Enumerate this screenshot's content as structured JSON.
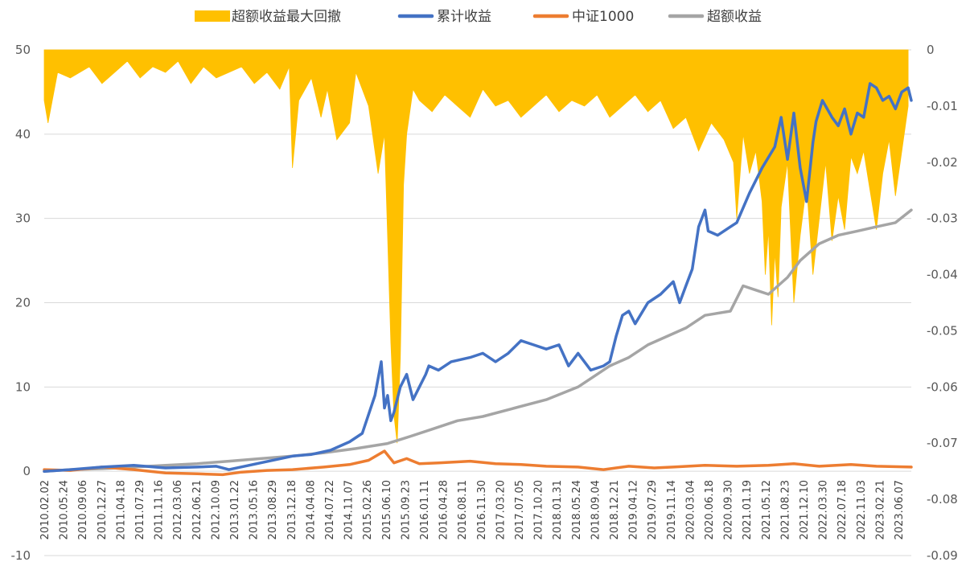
{
  "chart_data": {
    "type": "line",
    "legend_position": "top",
    "grid": "horizontal",
    "left_axis": {
      "ylim": [
        -10,
        50
      ],
      "ticks": [
        "-10",
        "0",
        "10",
        "20",
        "30",
        "40",
        "50"
      ],
      "tick_values": [
        -10,
        0,
        10,
        20,
        30,
        40,
        50
      ]
    },
    "right_axis": {
      "ylim": [
        -0.09,
        0
      ],
      "ticks": [
        "0",
        "-0.01",
        "-0.02",
        "-0.03",
        "-0.04",
        "-0.05",
        "-0.06",
        "-0.07",
        "-0.08",
        "-0.09"
      ],
      "tick_values": [
        0,
        -0.01,
        -0.02,
        -0.03,
        -0.04,
        -0.05,
        -0.06,
        -0.07,
        -0.08,
        -0.09
      ]
    },
    "x_tick_labels": [
      "2010.02.02",
      "2010.05.24",
      "2010.09.06",
      "2010.12.27",
      "2011.04.18",
      "2011.07.29",
      "2011.11.16",
      "2012.03.06",
      "2012.06.21",
      "2012.10.09",
      "2013.01.22",
      "2013.05.16",
      "2013.08.29",
      "2013.12.18",
      "2014.04.08",
      "2014.07.22",
      "2014.11.07",
      "2015.02.26",
      "2015.06.10",
      "2015.09.23",
      "2016.01.11",
      "2016.04.28",
      "2016.08.11",
      "2016.11.30",
      "2017.03.20",
      "2017.07.05",
      "2017.10.20",
      "2018.01.31",
      "2018.05.24",
      "2018.09.04",
      "2018.12.21",
      "2019.04.12",
      "2019.07.29",
      "2019.11.14",
      "2020.03.04",
      "2020.06.18",
      "2020.09.30",
      "2021.01.19",
      "2021.05.12",
      "2021.08.23",
      "2021.12.10",
      "2022.03.30",
      "2022.07.18",
      "2022.11.03",
      "2023.02.21",
      "2023.06.07"
    ],
    "series": [
      {
        "name": "超额收益最大回撤",
        "type": "area",
        "axis": "right",
        "color": "#FFC000",
        "x": [
          2010.09,
          2010.15,
          2010.3,
          2010.5,
          2010.8,
          2011.0,
          2011.2,
          2011.4,
          2011.6,
          2011.8,
          2012.0,
          2012.2,
          2012.4,
          2012.6,
          2012.8,
          2013.0,
          2013.2,
          2013.4,
          2013.6,
          2013.8,
          2013.95,
          2014.0,
          2014.1,
          2014.3,
          2014.45,
          2014.55,
          2014.7,
          2014.9,
          2015.0,
          2015.2,
          2015.35,
          2015.45,
          2015.5,
          2015.55,
          2015.6,
          2015.65,
          2015.7,
          2015.75,
          2015.8,
          2015.9,
          2016.0,
          2016.2,
          2016.4,
          2016.6,
          2016.8,
          2017.0,
          2017.2,
          2017.4,
          2017.6,
          2017.8,
          2018.0,
          2018.2,
          2018.4,
          2018.6,
          2018.8,
          2019.0,
          2019.2,
          2019.4,
          2019.6,
          2019.8,
          2020.0,
          2020.2,
          2020.4,
          2020.6,
          2020.8,
          2020.95,
          2021.0,
          2021.1,
          2021.2,
          2021.3,
          2021.4,
          2021.45,
          2021.5,
          2021.55,
          2021.6,
          2021.65,
          2021.7,
          2021.8,
          2021.9,
          2022.0,
          2022.1,
          2022.2,
          2022.3,
          2022.4,
          2022.5,
          2022.6,
          2022.7,
          2022.8,
          2022.9,
          2023.0,
          2023.1,
          2023.2,
          2023.3,
          2023.4,
          2023.5,
          2023.6,
          2023.7
        ],
        "values": [
          -0.009,
          -0.013,
          -0.004,
          -0.005,
          -0.003,
          -0.006,
          -0.004,
          -0.002,
          -0.005,
          -0.003,
          -0.004,
          -0.002,
          -0.006,
          -0.003,
          -0.005,
          -0.004,
          -0.003,
          -0.006,
          -0.004,
          -0.007,
          -0.003,
          -0.021,
          -0.009,
          -0.005,
          -0.012,
          -0.007,
          -0.016,
          -0.013,
          -0.004,
          -0.01,
          -0.022,
          -0.015,
          -0.033,
          -0.052,
          -0.065,
          -0.07,
          -0.055,
          -0.024,
          -0.015,
          -0.007,
          -0.009,
          -0.011,
          -0.008,
          -0.01,
          -0.012,
          -0.007,
          -0.01,
          -0.009,
          -0.012,
          -0.01,
          -0.008,
          -0.011,
          -0.009,
          -0.01,
          -0.008,
          -0.012,
          -0.01,
          -0.008,
          -0.011,
          -0.009,
          -0.014,
          -0.012,
          -0.018,
          -0.013,
          -0.016,
          -0.02,
          -0.03,
          -0.015,
          -0.022,
          -0.018,
          -0.027,
          -0.04,
          -0.032,
          -0.049,
          -0.036,
          -0.044,
          -0.028,
          -0.02,
          -0.045,
          -0.033,
          -0.024,
          -0.04,
          -0.03,
          -0.02,
          -0.034,
          -0.026,
          -0.032,
          -0.019,
          -0.022,
          -0.018,
          -0.025,
          -0.032,
          -0.022,
          -0.016,
          -0.026,
          -0.018,
          -0.01
        ]
      },
      {
        "name": "累计收益",
        "type": "line",
        "axis": "left",
        "color": "#4472C4",
        "x": [
          2010.09,
          2010.5,
          2011.0,
          2011.5,
          2012.0,
          2012.5,
          2012.8,
          2013.0,
          2013.5,
          2014.0,
          2014.3,
          2014.6,
          2014.9,
          2015.1,
          2015.3,
          2015.4,
          2015.45,
          2015.5,
          2015.55,
          2015.6,
          2015.7,
          2015.8,
          2015.9,
          2016.0,
          2016.1,
          2016.15,
          2016.3,
          2016.5,
          2016.8,
          2017.0,
          2017.2,
          2017.4,
          2017.6,
          2017.8,
          2018.0,
          2018.2,
          2018.35,
          2018.5,
          2018.7,
          2018.9,
          2019.0,
          2019.1,
          2019.2,
          2019.3,
          2019.4,
          2019.6,
          2019.8,
          2020.0,
          2020.1,
          2020.2,
          2020.3,
          2020.4,
          2020.5,
          2020.55,
          2020.7,
          2020.9,
          2021.0,
          2021.2,
          2021.4,
          2021.6,
          2021.7,
          2021.8,
          2021.9,
          2022.0,
          2022.1,
          2022.2,
          2022.25,
          2022.35,
          2022.5,
          2022.6,
          2022.7,
          2022.8,
          2022.9,
          2023.0,
          2023.1,
          2023.2,
          2023.3,
          2023.4,
          2023.5,
          2023.6,
          2023.7,
          2023.75
        ],
        "values": [
          0,
          0.2,
          0.5,
          0.7,
          0.4,
          0.5,
          0.6,
          0.2,
          1.0,
          1.8,
          2.0,
          2.5,
          3.5,
          4.5,
          9.0,
          13.0,
          7.5,
          9.0,
          6.0,
          7.0,
          10.0,
          11.5,
          8.5,
          10.0,
          11.5,
          12.5,
          12.0,
          13.0,
          13.5,
          14.0,
          13.0,
          14.0,
          15.5,
          15.0,
          14.5,
          15.0,
          12.5,
          14.0,
          12.0,
          12.5,
          13.0,
          16.0,
          18.5,
          19.0,
          17.5,
          20.0,
          21.0,
          22.5,
          20.0,
          22.0,
          24.0,
          29.0,
          31.0,
          28.5,
          28.0,
          29.0,
          29.5,
          33.0,
          36.0,
          38.5,
          42.0,
          37.0,
          42.5,
          36.0,
          32.0,
          39.0,
          41.5,
          44.0,
          42.0,
          41.0,
          43.0,
          40.0,
          42.5,
          42.0,
          46.0,
          45.5,
          44.0,
          44.5,
          43.0,
          45.0,
          45.5,
          44.0
        ]
      },
      {
        "name": "中证1000",
        "type": "line",
        "axis": "left",
        "color": "#ED7D31",
        "x": [
          2010.09,
          2010.5,
          2011.0,
          2011.5,
          2012.0,
          2012.5,
          2012.9,
          2013.2,
          2013.6,
          2014.0,
          2014.5,
          2014.9,
          2015.2,
          2015.45,
          2015.6,
          2015.8,
          2016.0,
          2016.3,
          2016.8,
          2017.2,
          2017.6,
          2018.0,
          2018.5,
          2018.9,
          2019.3,
          2019.7,
          2020.0,
          2020.5,
          2021.0,
          2021.5,
          2021.9,
          2022.3,
          2022.8,
          2023.2,
          2023.75
        ],
        "values": [
          0.2,
          0.1,
          0.5,
          0.2,
          -0.2,
          -0.3,
          -0.4,
          -0.1,
          0.1,
          0.2,
          0.5,
          0.8,
          1.3,
          2.4,
          1.0,
          1.5,
          0.9,
          1.0,
          1.2,
          0.9,
          0.8,
          0.6,
          0.5,
          0.2,
          0.6,
          0.4,
          0.5,
          0.7,
          0.6,
          0.7,
          0.9,
          0.6,
          0.8,
          0.6,
          0.5
        ]
      },
      {
        "name": "超额收益",
        "type": "line",
        "axis": "left",
        "color": "#A5A5A5",
        "x": [
          2010.09,
          2010.5,
          2011.0,
          2011.5,
          2012.0,
          2012.5,
          2013.0,
          2013.5,
          2014.0,
          2014.5,
          2015.0,
          2015.5,
          2015.8,
          2016.2,
          2016.6,
          2017.0,
          2017.5,
          2018.0,
          2018.5,
          2018.8,
          2019.0,
          2019.3,
          2019.6,
          2019.9,
          2020.2,
          2020.5,
          2020.9,
          2021.1,
          2021.3,
          2021.5,
          2021.8,
          2022.0,
          2022.3,
          2022.6,
          2022.9,
          2023.2,
          2023.5,
          2023.75
        ],
        "values": [
          0,
          0.2,
          0.3,
          0.5,
          0.7,
          0.9,
          1.2,
          1.5,
          1.8,
          2.2,
          2.7,
          3.3,
          4.0,
          5.0,
          6.0,
          6.5,
          7.5,
          8.5,
          10.0,
          11.5,
          12.5,
          13.5,
          15.0,
          16.0,
          17.0,
          18.5,
          19.0,
          22.0,
          21.5,
          21.0,
          23.0,
          25.0,
          27.0,
          28.0,
          28.5,
          29.0,
          29.5,
          31.0
        ]
      }
    ]
  }
}
